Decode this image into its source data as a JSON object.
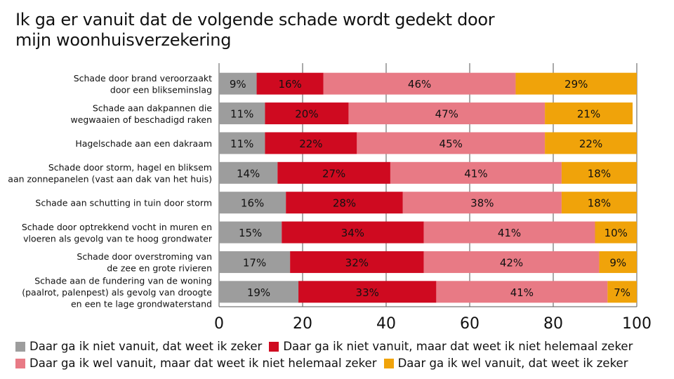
{
  "chart_data": {
    "type": "bar",
    "orientation": "horizontal-stacked",
    "title": "Ik ga er vanuit dat de volgende schade wordt gedekt door mijn woonhuisverzekering",
    "title_lines": [
      "Ik ga er vanuit dat de volgende schade wordt gedekt door",
      "mijn woonhuisverzekering"
    ],
    "categories": [
      [
        "Schade door brand veroorzaakt",
        "door een blikseminslag"
      ],
      [
        "Schade aan dakpannen die",
        "wegwaaien of beschadigd raken"
      ],
      [
        "Hagelschade aan een dakraam"
      ],
      [
        "Schade door storm, hagel en bliksem",
        "aan zonnepanelen (vast aan dak van het huis)"
      ],
      [
        "Schade aan schutting in tuin door storm"
      ],
      [
        "Schade door optrekkend vocht in muren en",
        "vloeren als gevolg van te hoog grondwater"
      ],
      [
        "Schade door overstroming van",
        "de zee en grote rivieren"
      ],
      [
        "Schade aan de fundering van de woning",
        "(paalrot, palenpest) als gevolg van droogte",
        "en een te lage grondwaterstand"
      ]
    ],
    "series": [
      {
        "name": "Daar ga ik niet vanuit, dat weet ik zeker",
        "color": "#9d9d9d",
        "values": [
          9,
          11,
          11,
          14,
          16,
          15,
          17,
          19
        ]
      },
      {
        "name": "Daar ga ik niet vanuit, maar dat weet ik niet helemaal zeker",
        "color": "#cf0a20",
        "values": [
          16,
          20,
          22,
          27,
          28,
          34,
          32,
          33
        ]
      },
      {
        "name": "Daar ga ik wel vanuit, maar dat weet ik niet helemaal zeker",
        "color": "#e87a85",
        "values": [
          46,
          47,
          45,
          41,
          38,
          41,
          42,
          41
        ]
      },
      {
        "name": "Daar ga ik wel vanuit, dat weet ik zeker",
        "color": "#f0a30a",
        "values": [
          29,
          21,
          22,
          18,
          18,
          10,
          9,
          7
        ]
      }
    ],
    "value_suffix": "%",
    "xlim": [
      0,
      100
    ],
    "xticks": [
      0,
      20,
      40,
      60,
      80,
      100
    ],
    "grid": true,
    "legend_position": "bottom"
  }
}
